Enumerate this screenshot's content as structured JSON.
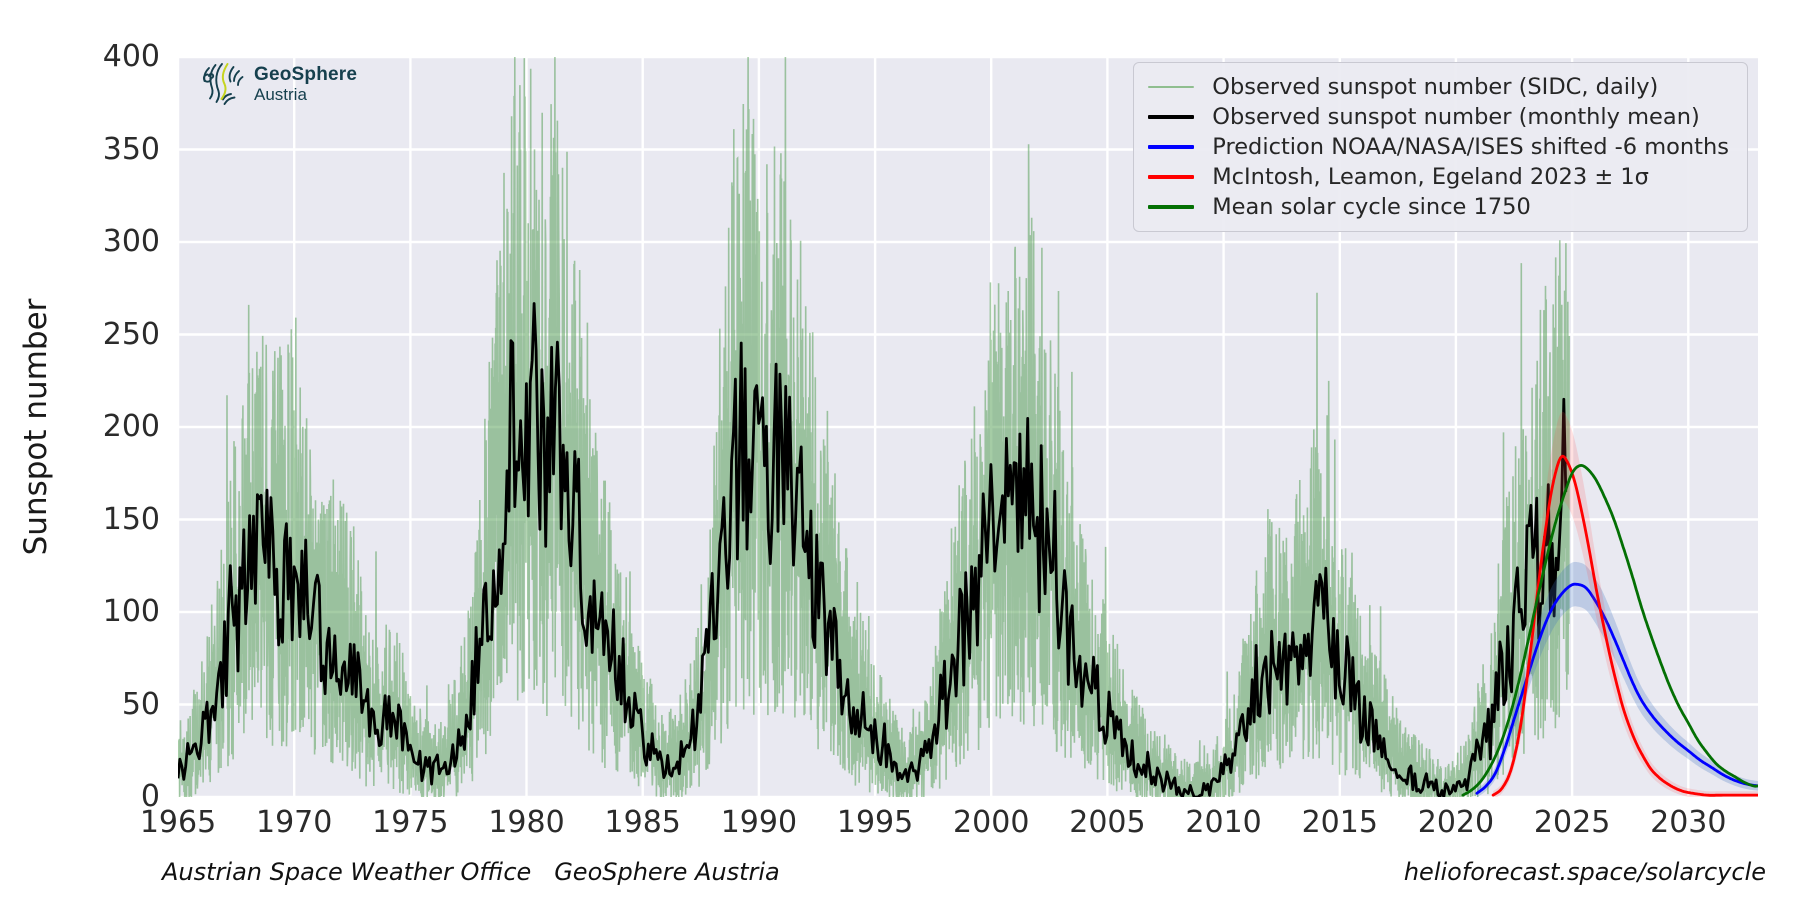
{
  "branding": {
    "logo_title": "GeoSphere",
    "logo_subtitle": "Austria"
  },
  "footer": {
    "left": "Austrian Space Weather Office   GeoSphere Austria",
    "right": "helioforecast.space/solarcycle"
  },
  "colors": {
    "figure_bg": "#ffffff",
    "axes_bg": "#E9E9F1",
    "grid": "#ffffff",
    "tick_text": "#2b2b2b",
    "daily_green": "rgba(76,153,76,0.5)",
    "daily_green_legend": "#8fbe8f",
    "monthly_black": "#000000",
    "prediction_blue": "#0000ff",
    "prediction_blue_band": "rgba(60,110,190,0.25)",
    "mcintosh_red": "#ff0000",
    "mcintosh_red_band": "rgba(255,70,70,0.16)",
    "mean_cycle_green": "#047004",
    "logo_teal": "#16404E",
    "logo_accent": "#C6D41F"
  },
  "chart_data": {
    "type": "line",
    "title": "",
    "xlabel": "",
    "ylabel": "Sunspot number",
    "xlim": [
      1965,
      2033
    ],
    "ylim": [
      0,
      400
    ],
    "xticks": [
      1965,
      1970,
      1975,
      1980,
      1985,
      1990,
      1995,
      2000,
      2005,
      2010,
      2015,
      2020,
      2025,
      2030
    ],
    "yticks": [
      0,
      50,
      100,
      150,
      200,
      250,
      300,
      350,
      400
    ],
    "grid": true,
    "legend_position": "upper right",
    "observed_envelope_monthly_mean": [
      [
        1965,
        16
      ],
      [
        1965.5,
        18
      ],
      [
        1966,
        30
      ],
      [
        1966.5,
        46
      ],
      [
        1967,
        72
      ],
      [
        1967.5,
        97
      ],
      [
        1968,
        118
      ],
      [
        1968.5,
        127
      ],
      [
        1969,
        126
      ],
      [
        1969.5,
        120
      ],
      [
        1970,
        126
      ],
      [
        1970.5,
        114
      ],
      [
        1971,
        90
      ],
      [
        1971.5,
        76
      ],
      [
        1972,
        76
      ],
      [
        1972.5,
        70
      ],
      [
        1973,
        50
      ],
      [
        1973.5,
        43
      ],
      [
        1974,
        43
      ],
      [
        1974.5,
        38
      ],
      [
        1975,
        22
      ],
      [
        1975.5,
        18
      ],
      [
        1976,
        14
      ],
      [
        1976.5,
        16
      ],
      [
        1977,
        28
      ],
      [
        1977.5,
        46
      ],
      [
        1978,
        82
      ],
      [
        1978.5,
        122
      ],
      [
        1979,
        168
      ],
      [
        1979.5,
        200
      ],
      [
        1980,
        198
      ],
      [
        1980.5,
        188
      ],
      [
        1981,
        184
      ],
      [
        1981.5,
        190
      ],
      [
        1982,
        152
      ],
      [
        1982.5,
        132
      ],
      [
        1983,
        94
      ],
      [
        1983.5,
        80
      ],
      [
        1984,
        70
      ],
      [
        1984.5,
        50
      ],
      [
        1985,
        30
      ],
      [
        1985.5,
        22
      ],
      [
        1986,
        16
      ],
      [
        1986.5,
        18
      ],
      [
        1987,
        30
      ],
      [
        1987.5,
        50
      ],
      [
        1988,
        92
      ],
      [
        1988.5,
        140
      ],
      [
        1989,
        186
      ],
      [
        1989.5,
        196
      ],
      [
        1990,
        178
      ],
      [
        1990.5,
        172
      ],
      [
        1991,
        184
      ],
      [
        1991.5,
        178
      ],
      [
        1992,
        134
      ],
      [
        1992.5,
        114
      ],
      [
        1993,
        88
      ],
      [
        1993.5,
        70
      ],
      [
        1994,
        54
      ],
      [
        1994.5,
        42
      ],
      [
        1995,
        30
      ],
      [
        1995.5,
        22
      ],
      [
        1996,
        13
      ],
      [
        1996.5,
        11
      ],
      [
        1997,
        18
      ],
      [
        1997.5,
        30
      ],
      [
        1998,
        56
      ],
      [
        1998.5,
        76
      ],
      [
        1999,
        96
      ],
      [
        1999.5,
        118
      ],
      [
        2000,
        152
      ],
      [
        2000.5,
        150
      ],
      [
        2001,
        148
      ],
      [
        2001.5,
        158
      ],
      [
        2002,
        150
      ],
      [
        2002.5,
        132
      ],
      [
        2003,
        100
      ],
      [
        2003.5,
        86
      ],
      [
        2004,
        64
      ],
      [
        2004.5,
        54
      ],
      [
        2005,
        44
      ],
      [
        2005.5,
        34
      ],
      [
        2006,
        24
      ],
      [
        2006.5,
        18
      ],
      [
        2007,
        13
      ],
      [
        2007.5,
        9
      ],
      [
        2008,
        5
      ],
      [
        2008.5,
        3
      ],
      [
        2009,
        3
      ],
      [
        2009.5,
        6
      ],
      [
        2010,
        14
      ],
      [
        2010.5,
        22
      ],
      [
        2011,
        44
      ],
      [
        2011.5,
        64
      ],
      [
        2012,
        70
      ],
      [
        2012.5,
        68
      ],
      [
        2013,
        74
      ],
      [
        2013.5,
        86
      ],
      [
        2014,
        100
      ],
      [
        2014.5,
        92
      ],
      [
        2015,
        70
      ],
      [
        2015.5,
        62
      ],
      [
        2016,
        44
      ],
      [
        2016.5,
        34
      ],
      [
        2017,
        26
      ],
      [
        2017.5,
        19
      ],
      [
        2018,
        11
      ],
      [
        2018.5,
        8
      ],
      [
        2019,
        5
      ],
      [
        2019.5,
        3
      ],
      [
        2020,
        5
      ],
      [
        2020.5,
        10
      ],
      [
        2021,
        26
      ],
      [
        2021.5,
        36
      ],
      [
        2022,
        70
      ],
      [
        2022.5,
        88
      ],
      [
        2023,
        112
      ],
      [
        2023.5,
        126
      ],
      [
        2024,
        132
      ],
      [
        2024.3,
        144
      ],
      [
        2024.55,
        152
      ],
      [
        2024.7,
        148
      ],
      [
        2024.88,
        140
      ]
    ],
    "series": [
      {
        "name": "Observed sunspot number (SIDC, daily)",
        "kind": "noisy_daily",
        "color": "rgba(76,153,76,0.5)",
        "legend_color": "#8fbe8f",
        "width": 1.6,
        "x_start": 1965,
        "x_end": 2024.88,
        "noise": {
          "step": 0.0137,
          "up_frac": 0.95,
          "up_base": 15,
          "down_frac": 0.72,
          "down_base": 8,
          "burst_prob": 0.05,
          "burst_gain": 1.7,
          "seed": 20240901
        }
      },
      {
        "name": "Observed sunspot number (monthly mean)",
        "kind": "noisy_monthly",
        "color": "#000000",
        "legend_color": "#000000",
        "width": 2.8,
        "x_start": 1965,
        "x_end": 2024.79,
        "noise": {
          "step": 0.0833,
          "frac": 0.3,
          "base": 4,
          "burst_prob": 0.06,
          "burst_gain": 1.5,
          "seed": 77031
        },
        "peak_override": {
          "x": 2024.62,
          "value": 215
        }
      },
      {
        "name": "Prediction NOAA/NASA/ISES shifted -6 months",
        "kind": "curve",
        "color": "#0000ff",
        "legend_color": "#0000ff",
        "width": 2.8,
        "band": {
          "color": "rgba(60,110,190,0.25)",
          "frac": 0.1,
          "base": 2,
          "max": 12
        },
        "points": [
          [
            2020.9,
            2
          ],
          [
            2021.3,
            6
          ],
          [
            2021.7,
            13
          ],
          [
            2022.1,
            26
          ],
          [
            2022.5,
            42
          ],
          [
            2022.9,
            58
          ],
          [
            2023.3,
            74
          ],
          [
            2023.7,
            89
          ],
          [
            2024.1,
            101
          ],
          [
            2024.5,
            109
          ],
          [
            2024.9,
            114
          ],
          [
            2025.2,
            115
          ],
          [
            2025.6,
            113
          ],
          [
            2026,
            106
          ],
          [
            2026.4,
            97
          ],
          [
            2026.8,
            86
          ],
          [
            2027.2,
            74
          ],
          [
            2027.6,
            62
          ],
          [
            2028,
            52
          ],
          [
            2028.5,
            43
          ],
          [
            2029,
            36
          ],
          [
            2029.5,
            30
          ],
          [
            2030,
            25
          ],
          [
            2030.5,
            20
          ],
          [
            2031,
            16
          ],
          [
            2031.5,
            12
          ],
          [
            2032,
            9
          ],
          [
            2032.5,
            7
          ],
          [
            2033,
            6
          ]
        ]
      },
      {
        "name": "McIntosh, Leamon, Egeland 2023 ± 1σ",
        "kind": "curve",
        "color": "#ff0000",
        "legend_color": "#ff0000",
        "width": 2.8,
        "band": {
          "color": "rgba(255,70,70,0.16)",
          "frac": 0.12,
          "base": 2,
          "max": 24
        },
        "points": [
          [
            2021.6,
            1
          ],
          [
            2022,
            5
          ],
          [
            2022.4,
            16
          ],
          [
            2022.8,
            40
          ],
          [
            2023.2,
            78
          ],
          [
            2023.6,
            120
          ],
          [
            2024,
            157
          ],
          [
            2024.3,
            176
          ],
          [
            2024.55,
            184
          ],
          [
            2024.8,
            181
          ],
          [
            2025.1,
            171
          ],
          [
            2025.4,
            155
          ],
          [
            2025.7,
            136
          ],
          [
            2026,
            115
          ],
          [
            2026.3,
            96
          ],
          [
            2026.6,
            78
          ],
          [
            2026.9,
            62
          ],
          [
            2027.2,
            48
          ],
          [
            2027.5,
            37
          ],
          [
            2027.8,
            28
          ],
          [
            2028.1,
            21
          ],
          [
            2028.4,
            15
          ],
          [
            2028.7,
            11
          ],
          [
            2029,
            8
          ],
          [
            2029.4,
            5
          ],
          [
            2029.8,
            3
          ],
          [
            2030.2,
            2
          ],
          [
            2030.8,
            1
          ],
          [
            2031.5,
            1
          ],
          [
            2032.5,
            1
          ],
          [
            2033,
            1
          ]
        ]
      },
      {
        "name": "Mean solar cycle since 1750",
        "kind": "curve",
        "color": "#047004",
        "legend_color": "#047004",
        "width": 2.8,
        "points": [
          [
            2020.3,
            1
          ],
          [
            2020.7,
            4
          ],
          [
            2021.1,
            9
          ],
          [
            2021.5,
            17
          ],
          [
            2021.9,
            28
          ],
          [
            2022.3,
            43
          ],
          [
            2022.7,
            62
          ],
          [
            2023.1,
            84
          ],
          [
            2023.5,
            107
          ],
          [
            2023.9,
            129
          ],
          [
            2024.3,
            149
          ],
          [
            2024.7,
            165
          ],
          [
            2025,
            175
          ],
          [
            2025.3,
            179
          ],
          [
            2025.6,
            178
          ],
          [
            2026,
            172
          ],
          [
            2026.4,
            162
          ],
          [
            2026.8,
            150
          ],
          [
            2027.2,
            135
          ],
          [
            2027.6,
            119
          ],
          [
            2028,
            102
          ],
          [
            2028.4,
            87
          ],
          [
            2028.8,
            73
          ],
          [
            2029.2,
            60
          ],
          [
            2029.6,
            49
          ],
          [
            2030,
            40
          ],
          [
            2030.4,
            31
          ],
          [
            2030.8,
            24
          ],
          [
            2031.2,
            18
          ],
          [
            2031.6,
            14
          ],
          [
            2032,
            11
          ],
          [
            2032.4,
            8
          ],
          [
            2032.8,
            6
          ],
          [
            2033,
            6
          ]
        ]
      }
    ]
  }
}
